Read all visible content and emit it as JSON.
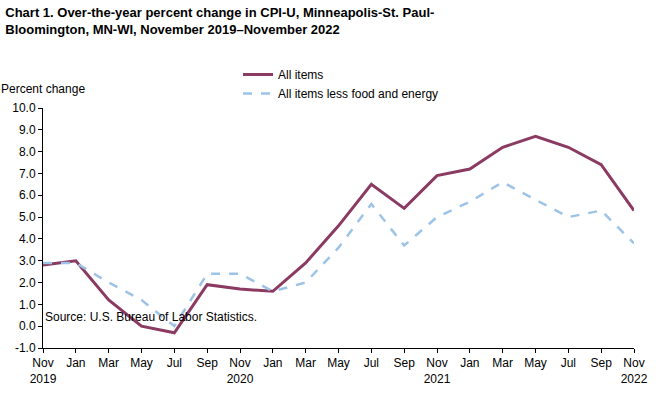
{
  "chart_data": {
    "type": "line",
    "title": "Chart 1. Over-the-year percent change in CPI-U, Minneapolis-St. Paul-\nBloomington, MN-WI, November 2019–November 2022",
    "y_label": "Percent change",
    "source": "Source: U.S. Bureau of Labor Statistics.",
    "categories": [
      "Nov\n2019",
      "Jan",
      "Mar",
      "May",
      "Jul",
      "Sep",
      "Nov\n2020",
      "Jan",
      "Mar",
      "May",
      "Jul",
      "Sep",
      "Nov\n2021",
      "Jan",
      "Mar",
      "May",
      "Jul",
      "Sep",
      "Nov\n2022"
    ],
    "series": [
      {
        "name": "All items",
        "color": "#8b3a62",
        "line_style": "solid",
        "values": [
          2.8,
          3.0,
          1.2,
          0.0,
          -0.3,
          1.9,
          1.7,
          1.6,
          2.9,
          4.6,
          6.5,
          5.4,
          6.9,
          7.2,
          8.2,
          8.7,
          8.2,
          7.4,
          5.3
        ]
      },
      {
        "name": "All items less food and energy",
        "color": "#9dc3e6",
        "line_style": "dash",
        "values": [
          2.9,
          2.9,
          2.0,
          1.2,
          0.0,
          2.4,
          2.4,
          1.6,
          2.0,
          3.6,
          5.6,
          3.7,
          5.0,
          5.7,
          6.6,
          5.8,
          5.0,
          5.3,
          3.8
        ]
      }
    ],
    "ylim": [
      -1,
      10
    ],
    "yticks": [
      {
        "value": -1,
        "label": "-1.0"
      },
      {
        "value": 0,
        "label": "0.0"
      },
      {
        "value": 1,
        "label": "1.0"
      },
      {
        "value": 2,
        "label": "2.0"
      },
      {
        "value": 3,
        "label": "3.0"
      },
      {
        "value": 4,
        "label": "4.0"
      },
      {
        "value": 5,
        "label": "5.0"
      },
      {
        "value": 6,
        "label": "6.0"
      },
      {
        "value": 7,
        "label": "7.0"
      },
      {
        "value": 8,
        "label": "8.0"
      },
      {
        "value": 9,
        "label": "9.0"
      },
      {
        "value": 10,
        "label": "10.0"
      }
    ],
    "grid": false,
    "legend": "top"
  }
}
